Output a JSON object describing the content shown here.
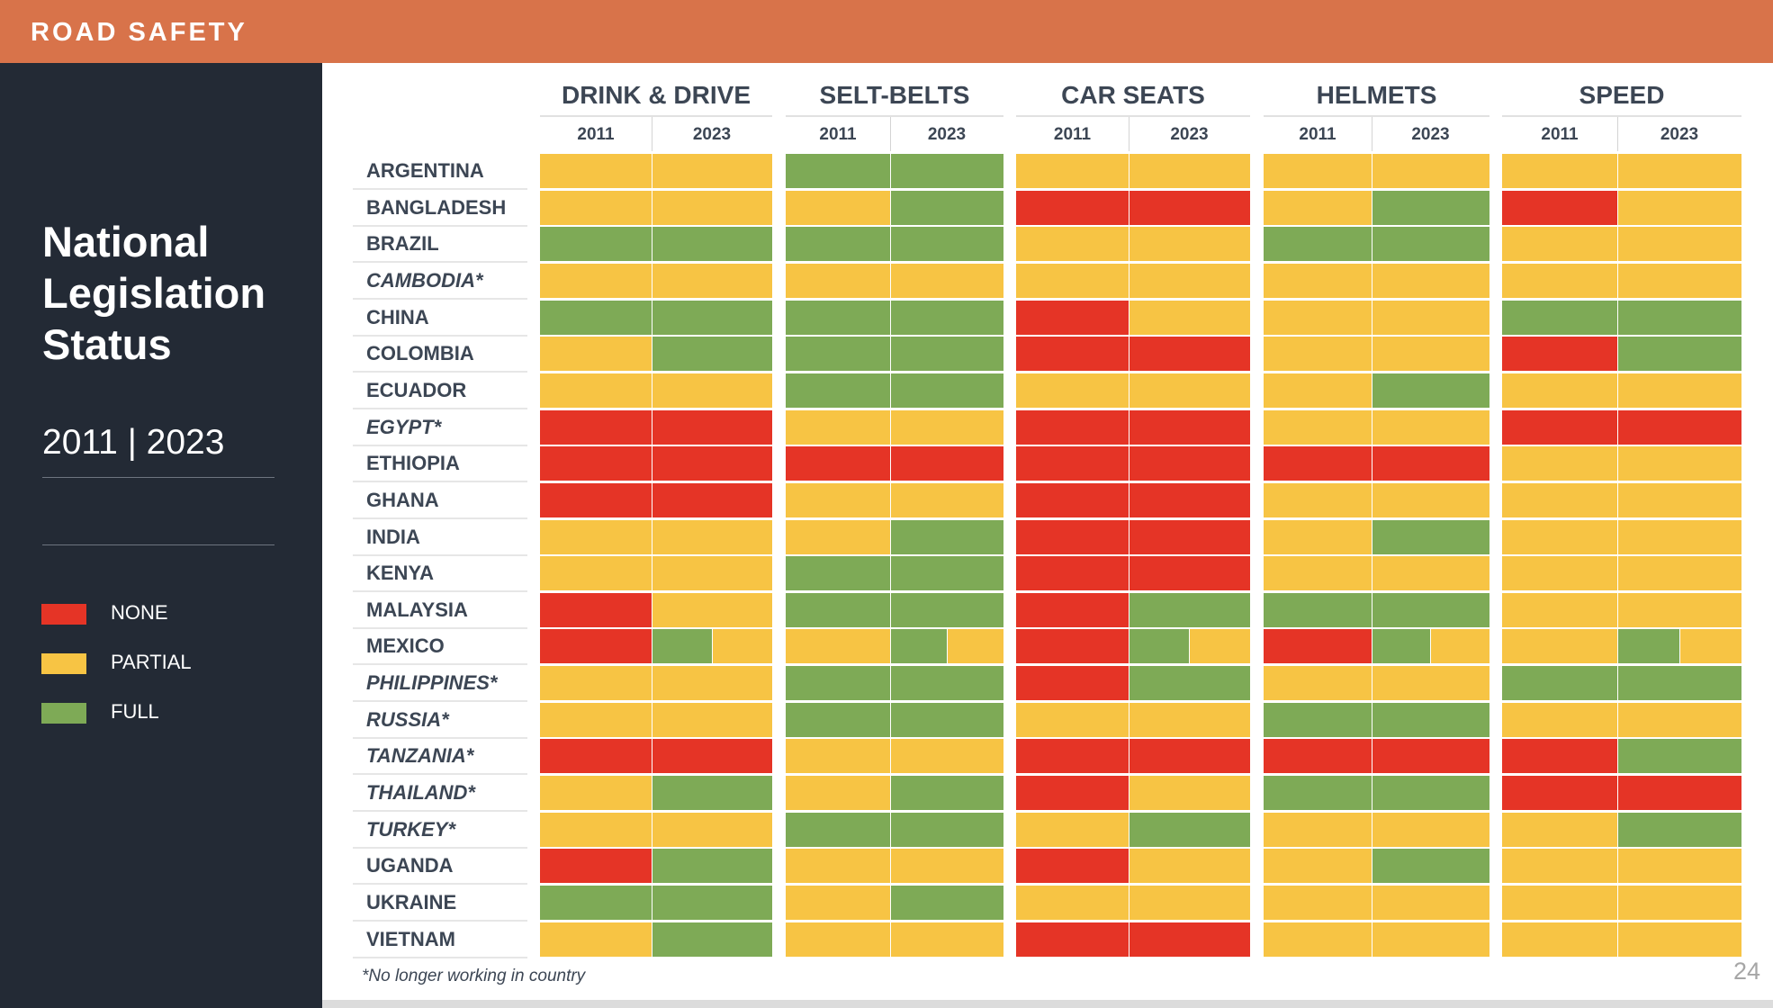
{
  "header": {
    "title": "ROAD SAFETY"
  },
  "sidebar": {
    "heading": [
      "National",
      "Legislation",
      "Status"
    ],
    "years": "2011 | 2023",
    "legend": [
      {
        "key": "none",
        "label": "NONE",
        "color": "#e53426"
      },
      {
        "key": "partial",
        "label": "PARTIAL",
        "color": "#f7c444"
      },
      {
        "key": "full",
        "label": "FULL",
        "color": "#7eaa56"
      }
    ]
  },
  "chart_data": {
    "type": "heatmap",
    "columns": [
      "DRINK & DRIVE",
      "SELT-BELTS",
      "CAR SEATS",
      "HELMETS",
      "SPEED"
    ],
    "years": [
      "2011",
      "2023"
    ],
    "legend": {
      "none": "NONE",
      "partial": "PARTIAL",
      "full": "FULL"
    },
    "colors": {
      "none": "#e53426",
      "partial": "#f7c444",
      "full": "#7eaa56"
    },
    "rows": [
      {
        "country": "ARGENTINA",
        "italic": false,
        "status": [
          [
            "partial",
            "partial"
          ],
          [
            "full",
            "full"
          ],
          [
            "partial",
            "partial"
          ],
          [
            "partial",
            "partial"
          ],
          [
            "partial",
            "partial"
          ]
        ]
      },
      {
        "country": "BANGLADESH",
        "italic": false,
        "status": [
          [
            "partial",
            "partial"
          ],
          [
            "partial",
            "full"
          ],
          [
            "none",
            "none"
          ],
          [
            "partial",
            "full"
          ],
          [
            "none",
            "partial"
          ]
        ]
      },
      {
        "country": "BRAZIL",
        "italic": false,
        "status": [
          [
            "full",
            "full"
          ],
          [
            "full",
            "full"
          ],
          [
            "partial",
            "partial"
          ],
          [
            "full",
            "full"
          ],
          [
            "partial",
            "partial"
          ]
        ]
      },
      {
        "country": "CAMBODIA*",
        "italic": true,
        "status": [
          [
            "partial",
            "partial"
          ],
          [
            "partial",
            "partial"
          ],
          [
            "partial",
            "partial"
          ],
          [
            "partial",
            "partial"
          ],
          [
            "partial",
            "partial"
          ]
        ]
      },
      {
        "country": "CHINA",
        "italic": false,
        "status": [
          [
            "full",
            "full"
          ],
          [
            "full",
            "full"
          ],
          [
            "none",
            "partial"
          ],
          [
            "partial",
            "partial"
          ],
          [
            "full",
            "full"
          ]
        ]
      },
      {
        "country": "COLOMBIA",
        "italic": false,
        "status": [
          [
            "partial",
            "full"
          ],
          [
            "full",
            "full"
          ],
          [
            "none",
            "none"
          ],
          [
            "partial",
            "partial"
          ],
          [
            "none",
            "full"
          ]
        ]
      },
      {
        "country": "ECUADOR",
        "italic": false,
        "status": [
          [
            "partial",
            "partial"
          ],
          [
            "full",
            "full"
          ],
          [
            "partial",
            "partial"
          ],
          [
            "partial",
            "full"
          ],
          [
            "partial",
            "partial"
          ]
        ]
      },
      {
        "country": "EGYPT*",
        "italic": true,
        "status": [
          [
            "none",
            "none"
          ],
          [
            "partial",
            "partial"
          ],
          [
            "none",
            "none"
          ],
          [
            "partial",
            "partial"
          ],
          [
            "none",
            "none"
          ]
        ]
      },
      {
        "country": "ETHIOPIA",
        "italic": false,
        "status": [
          [
            "none",
            "none"
          ],
          [
            "none",
            "none"
          ],
          [
            "none",
            "none"
          ],
          [
            "none",
            "none"
          ],
          [
            "partial",
            "partial"
          ]
        ]
      },
      {
        "country": "GHANA",
        "italic": false,
        "status": [
          [
            "none",
            "none"
          ],
          [
            "partial",
            "partial"
          ],
          [
            "none",
            "none"
          ],
          [
            "partial",
            "partial"
          ],
          [
            "partial",
            "partial"
          ]
        ]
      },
      {
        "country": "INDIA",
        "italic": false,
        "status": [
          [
            "partial",
            "partial"
          ],
          [
            "partial",
            "full"
          ],
          [
            "none",
            "none"
          ],
          [
            "partial",
            "full"
          ],
          [
            "partial",
            "partial"
          ]
        ]
      },
      {
        "country": "KENYA",
        "italic": false,
        "status": [
          [
            "partial",
            "partial"
          ],
          [
            "full",
            "full"
          ],
          [
            "none",
            "none"
          ],
          [
            "partial",
            "partial"
          ],
          [
            "partial",
            "partial"
          ]
        ]
      },
      {
        "country": "MALAYSIA",
        "italic": false,
        "status": [
          [
            "none",
            "partial"
          ],
          [
            "full",
            "full"
          ],
          [
            "none",
            "full"
          ],
          [
            "full",
            "full"
          ],
          [
            "partial",
            "partial"
          ]
        ]
      },
      {
        "country": "MEXICO",
        "italic": false,
        "status": [
          [
            "none",
            "full+partial"
          ],
          [
            "partial",
            "full+partial"
          ],
          [
            "none",
            "full+partial"
          ],
          [
            "none",
            "full+partial"
          ],
          [
            "partial",
            "full+partial"
          ]
        ]
      },
      {
        "country": "PHILIPPINES*",
        "italic": true,
        "status": [
          [
            "partial",
            "partial"
          ],
          [
            "full",
            "full"
          ],
          [
            "none",
            "full"
          ],
          [
            "partial",
            "partial"
          ],
          [
            "full",
            "full"
          ]
        ]
      },
      {
        "country": "RUSSIA*",
        "italic": true,
        "status": [
          [
            "partial",
            "partial"
          ],
          [
            "full",
            "full"
          ],
          [
            "partial",
            "partial"
          ],
          [
            "full",
            "full"
          ],
          [
            "partial",
            "partial"
          ]
        ]
      },
      {
        "country": "TANZANIA*",
        "italic": true,
        "status": [
          [
            "none",
            "none"
          ],
          [
            "partial",
            "partial"
          ],
          [
            "none",
            "none"
          ],
          [
            "none",
            "none"
          ],
          [
            "none",
            "full"
          ]
        ]
      },
      {
        "country": "THAILAND*",
        "italic": true,
        "status": [
          [
            "partial",
            "full"
          ],
          [
            "partial",
            "full"
          ],
          [
            "none",
            "partial"
          ],
          [
            "full",
            "full"
          ],
          [
            "none",
            "none"
          ]
        ]
      },
      {
        "country": "TURKEY*",
        "italic": true,
        "status": [
          [
            "partial",
            "partial"
          ],
          [
            "full",
            "full"
          ],
          [
            "partial",
            "full"
          ],
          [
            "partial",
            "partial"
          ],
          [
            "partial",
            "full"
          ]
        ]
      },
      {
        "country": "UGANDA",
        "italic": false,
        "status": [
          [
            "none",
            "full"
          ],
          [
            "partial",
            "partial"
          ],
          [
            "none",
            "partial"
          ],
          [
            "partial",
            "full"
          ],
          [
            "partial",
            "partial"
          ]
        ]
      },
      {
        "country": "UKRAINE",
        "italic": false,
        "status": [
          [
            "full",
            "full"
          ],
          [
            "partial",
            "full"
          ],
          [
            "partial",
            "partial"
          ],
          [
            "partial",
            "partial"
          ],
          [
            "partial",
            "partial"
          ]
        ]
      },
      {
        "country": "VIETNAM",
        "italic": false,
        "status": [
          [
            "partial",
            "full"
          ],
          [
            "partial",
            "partial"
          ],
          [
            "none",
            "none"
          ],
          [
            "partial",
            "partial"
          ],
          [
            "partial",
            "partial"
          ]
        ]
      }
    ]
  },
  "footnote": "*No longer working in country",
  "page_number": "24"
}
